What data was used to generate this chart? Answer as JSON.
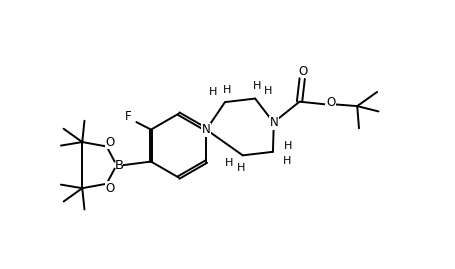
{
  "background": "#ffffff",
  "line_color": "#000000",
  "line_width": 1.4,
  "font_size": 8.5,
  "fig_width": 4.55,
  "fig_height": 2.69,
  "dpi": 100,
  "xlim": [
    0,
    9
  ],
  "ylim": [
    0,
    6
  ]
}
